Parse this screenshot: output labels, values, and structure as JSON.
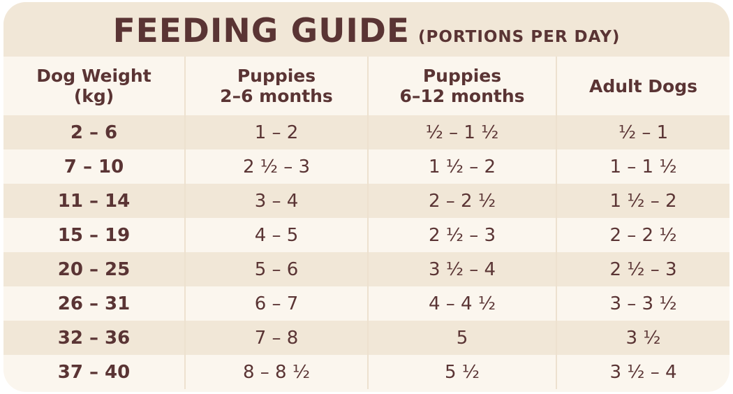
{
  "title": {
    "main": "FEEDING GUIDE",
    "sub": "(PORTIONS PER DAY)"
  },
  "headers": [
    {
      "line1": "Dog Weight",
      "line2": "(kg)"
    },
    {
      "line1": "Puppies",
      "line2": "2–6 months"
    },
    {
      "line1": "Puppies",
      "line2": "6–12 months"
    },
    {
      "line1": "Adult Dogs",
      "line2": ""
    }
  ],
  "rows": [
    {
      "weight": "2 – 6",
      "puppies_2_6": "1 – 2",
      "puppies_6_12": "½ – 1 ½",
      "adult": "½ – 1"
    },
    {
      "weight": "7 – 10",
      "puppies_2_6": "2 ½ – 3",
      "puppies_6_12": "1 ½ – 2",
      "adult": "1 – 1 ½"
    },
    {
      "weight": "11 – 14",
      "puppies_2_6": "3 – 4",
      "puppies_6_12": "2 – 2 ½",
      "adult": "1 ½ – 2"
    },
    {
      "weight": "15 – 19",
      "puppies_2_6": "4 – 5",
      "puppies_6_12": "2 ½ – 3",
      "adult": "2 – 2 ½"
    },
    {
      "weight": "20 – 25",
      "puppies_2_6": "5 – 6",
      "puppies_6_12": "3 ½ – 4",
      "adult": "2 ½ – 3"
    },
    {
      "weight": "26 – 31",
      "puppies_2_6": "6 – 7",
      "puppies_6_12": "4 – 4 ½",
      "adult": "3 – 3 ½"
    },
    {
      "weight": "32 – 36",
      "puppies_2_6": "7 – 8",
      "puppies_6_12": "5",
      "adult": "3 ½"
    },
    {
      "weight": "37 – 40",
      "puppies_2_6": "8 – 8 ½",
      "puppies_6_12": "5 ½",
      "adult": "3 ½ – 4"
    }
  ],
  "colors": {
    "text": "#5a3434",
    "shaded_row": "#f1e7d7",
    "plain_row": "#fbf6ee"
  }
}
